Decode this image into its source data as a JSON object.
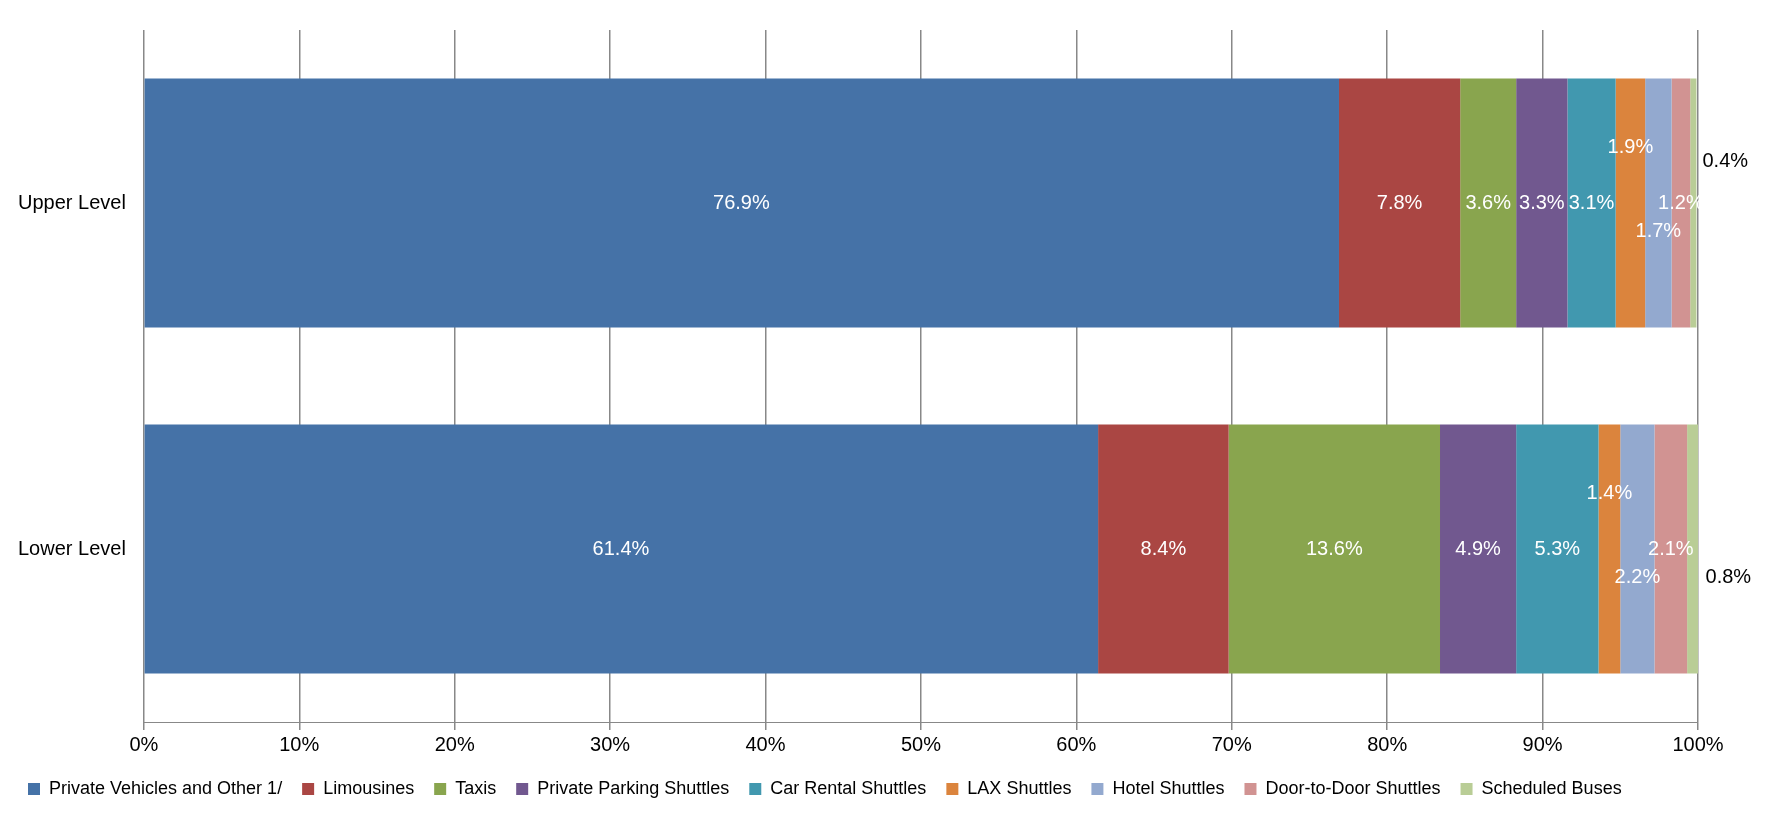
{
  "chart_data": {
    "type": "bar",
    "orientation": "horizontal",
    "stacked": true,
    "categories": [
      "Upper Level",
      "Lower Level"
    ],
    "series": [
      {
        "name": "Private Vehicles and Other 1/",
        "color": "#4572a7",
        "values": [
          76.9,
          61.4
        ],
        "value_labels": [
          "76.9%",
          "61.4%"
        ]
      },
      {
        "name": "Limousines",
        "color": "#aa4643",
        "values": [
          7.8,
          8.4
        ],
        "value_labels": [
          "7.8%",
          "8.4%"
        ]
      },
      {
        "name": "Taxis",
        "color": "#89a54e",
        "values": [
          3.6,
          13.6
        ],
        "value_labels": [
          "3.6%",
          "13.6%"
        ]
      },
      {
        "name": "Private Parking Shuttles",
        "color": "#71588f",
        "values": [
          3.3,
          4.9
        ],
        "value_labels": [
          "3.3%",
          "4.9%"
        ]
      },
      {
        "name": "Car Rental Shuttles",
        "color": "#4198af",
        "values": [
          3.1,
          5.3
        ],
        "value_labels": [
          "3.1%",
          "5.3%"
        ]
      },
      {
        "name": "LAX Shuttles",
        "color": "#db843d",
        "values": [
          1.9,
          1.4
        ],
        "value_labels": [
          "1.9%",
          "1.4%"
        ]
      },
      {
        "name": "Hotel Shuttles",
        "color": "#93a9cf",
        "values": [
          1.7,
          2.2
        ],
        "value_labels": [
          "1.7%",
          "2.2%"
        ]
      },
      {
        "name": "Door-to-Door Shuttles",
        "color": "#d19392",
        "values": [
          1.2,
          2.1
        ],
        "value_labels": [
          "1.2%",
          "2.1%"
        ]
      },
      {
        "name": "Scheduled Buses",
        "color": "#b9cd96",
        "values": [
          0.4,
          0.8
        ],
        "value_labels": [
          "0.4%",
          "0.8%"
        ]
      }
    ],
    "xlim": [
      0,
      100
    ],
    "xticks": [
      {
        "value": 0,
        "label": "0%"
      },
      {
        "value": 10,
        "label": "10%"
      },
      {
        "value": 20,
        "label": "20%"
      },
      {
        "value": 30,
        "label": "30%"
      },
      {
        "value": 40,
        "label": "40%"
      },
      {
        "value": 50,
        "label": "50%"
      },
      {
        "value": 60,
        "label": "60%"
      },
      {
        "value": 70,
        "label": "70%"
      },
      {
        "value": 80,
        "label": "80%"
      },
      {
        "value": 90,
        "label": "90%"
      },
      {
        "value": 100,
        "label": "100%"
      }
    ],
    "grid": "x",
    "legend": "bottom"
  }
}
